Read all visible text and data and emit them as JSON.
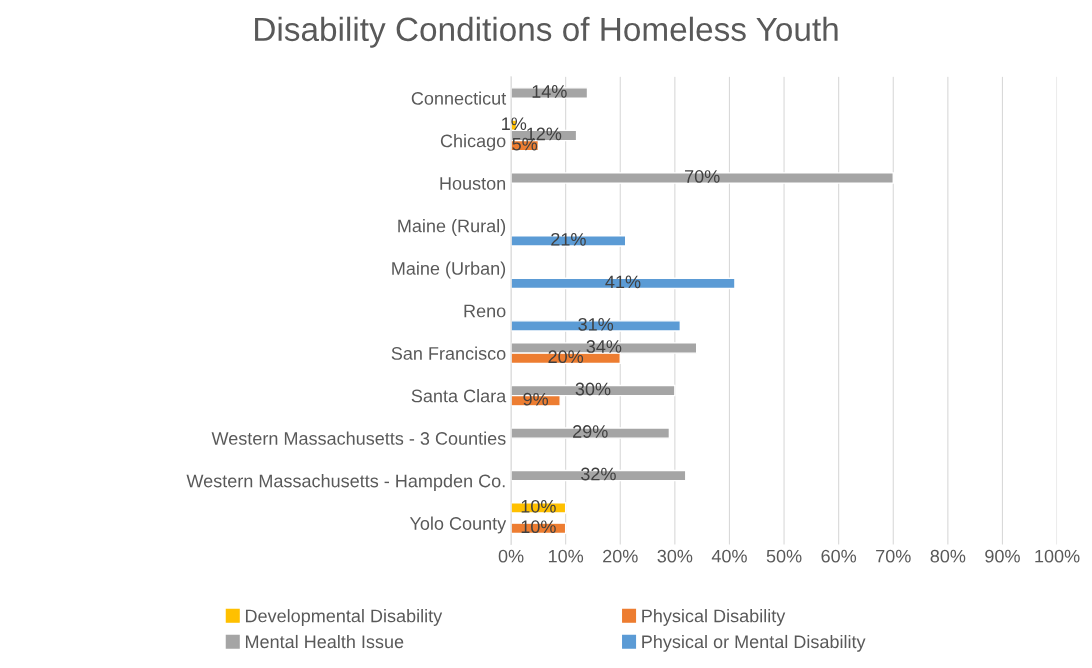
{
  "chart_data": {
    "type": "bar",
    "orientation": "horizontal",
    "title": "Disability Conditions of Homeless Youth",
    "categories": [
      "Connecticut",
      "Chicago",
      "Houston",
      "Maine (Rural)",
      "Maine (Urban)",
      "Reno",
      "San Francisco",
      "Santa Clara",
      "Western Massachusetts - 3 Counties",
      "Western Massachusetts - Hampden Co.",
      "Yolo County"
    ],
    "series": [
      {
        "name": "Developmental Disability",
        "color": "#ffc000",
        "values": [
          null,
          1,
          null,
          null,
          null,
          null,
          null,
          null,
          null,
          null,
          10
        ],
        "value_labels": [
          null,
          "1%",
          null,
          null,
          null,
          null,
          null,
          null,
          null,
          null,
          "10%"
        ]
      },
      {
        "name": "Mental Health Issue",
        "color": "#a5a5a5",
        "values": [
          14,
          12,
          70,
          null,
          null,
          null,
          34,
          30,
          29,
          32,
          null
        ],
        "value_labels": [
          "14%",
          "12%",
          "70%",
          null,
          null,
          null,
          "34%",
          "30%",
          "29%",
          "32%",
          null
        ]
      },
      {
        "name": "Physical Disability",
        "color": "#ed7d31",
        "values": [
          null,
          5,
          null,
          null,
          null,
          null,
          20,
          9,
          null,
          null,
          10
        ],
        "value_labels": [
          null,
          "5%",
          null,
          null,
          null,
          null,
          "20%",
          "9%",
          null,
          null,
          "10%"
        ]
      },
      {
        "name": "Physical or Mental Disability",
        "color": "#5b9bd5",
        "values": [
          null,
          null,
          null,
          21,
          41,
          31,
          null,
          null,
          null,
          null,
          null
        ],
        "value_labels": [
          null,
          null,
          null,
          "21%",
          "41%",
          "31%",
          null,
          null,
          null,
          null,
          null
        ]
      }
    ],
    "xlim": [
      0,
      100
    ],
    "xticks": [
      {
        "value": 0,
        "label": "0%"
      },
      {
        "value": 10,
        "label": "10%"
      },
      {
        "value": 20,
        "label": "20%"
      },
      {
        "value": 30,
        "label": "30%"
      },
      {
        "value": 40,
        "label": "40%"
      },
      {
        "value": 50,
        "label": "50%"
      },
      {
        "value": 60,
        "label": "60%"
      },
      {
        "value": 70,
        "label": "70%"
      },
      {
        "value": 80,
        "label": "80%"
      },
      {
        "value": 90,
        "label": "90%"
      },
      {
        "value": 100,
        "label": "100%"
      }
    ],
    "grid": "x",
    "legend": "bottom"
  }
}
